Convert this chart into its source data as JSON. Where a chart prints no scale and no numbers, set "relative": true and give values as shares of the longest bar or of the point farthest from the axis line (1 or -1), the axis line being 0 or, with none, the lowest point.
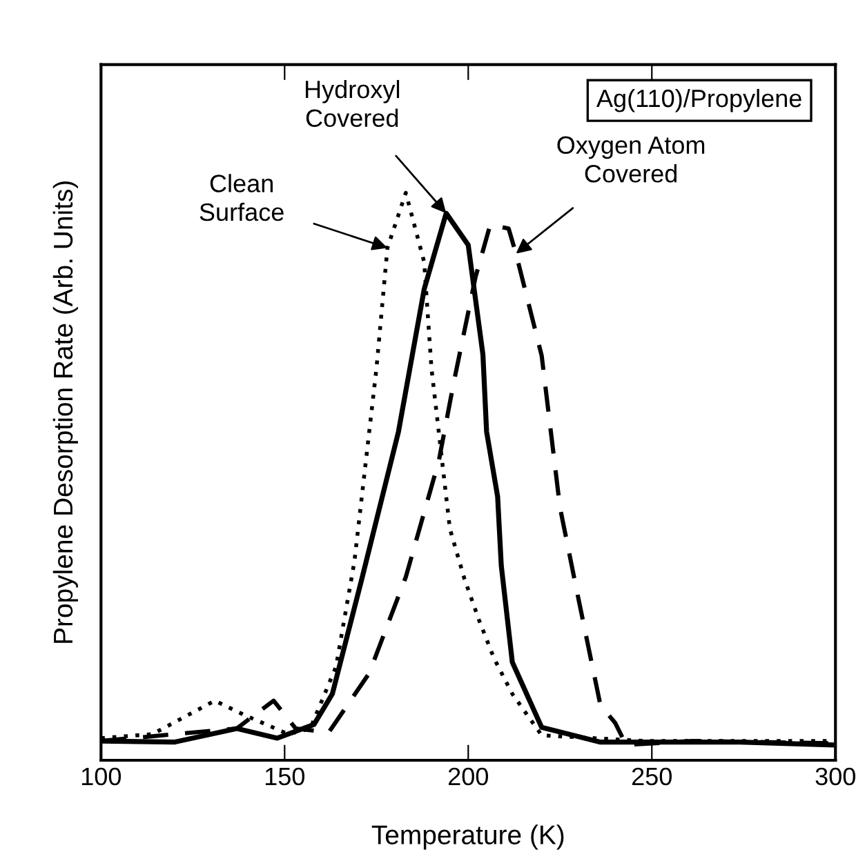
{
  "chart_data": {
    "type": "line",
    "title": "Ag(110)/Propylene",
    "xlabel": "Temperature (K)",
    "ylabel": "Propylene Desorption Rate (Arb. Units)",
    "relative": true,
    "xlim": [
      100,
      300
    ],
    "xticks": [
      100,
      150,
      200,
      250,
      300
    ],
    "grid": false,
    "legend": false,
    "marker": "none",
    "series": [
      {
        "color": "#000000",
        "line_style": "dotted",
        "x": [
          100,
          114,
          131,
          139,
          151,
          157,
          164,
          169,
          175,
          178,
          183,
          188,
          190,
          195,
          199,
          203,
          207,
          212,
          220,
          248,
          298
        ],
        "values": [
          0.039,
          0.046,
          0.105,
          0.08,
          0.046,
          0.056,
          0.165,
          0.35,
          0.69,
          0.903,
          1.0,
          0.878,
          0.69,
          0.408,
          0.319,
          0.246,
          0.18,
          0.117,
          0.044,
          0.034,
          0.034
        ]
      },
      {
        "color": "#000000",
        "line_style": "solid",
        "x": [
          100,
          120,
          137,
          148,
          158,
          163,
          171,
          181,
          188,
          194,
          200,
          204,
          205,
          208,
          209,
          212,
          220,
          236,
          274,
          299
        ],
        "values": [
          0.034,
          0.032,
          0.056,
          0.039,
          0.063,
          0.117,
          0.319,
          0.579,
          0.83,
          0.964,
          0.908,
          0.715,
          0.579,
          0.465,
          0.343,
          0.173,
          0.058,
          0.032,
          0.032,
          0.027
        ]
      },
      {
        "color": "#000000",
        "line_style": "dashed",
        "x": [
          100,
          137,
          140,
          147,
          153,
          162,
          173,
          183,
          192,
          196,
          202,
          206,
          211,
          213,
          220,
          225,
          230,
          236,
          240,
          243,
          261,
          299
        ],
        "values": [
          0.034,
          0.056,
          0.071,
          0.105,
          0.056,
          0.049,
          0.153,
          0.323,
          0.528,
          0.664,
          0.852,
          0.944,
          0.937,
          0.893,
          0.713,
          0.445,
          0.285,
          0.097,
          0.066,
          0.027,
          0.034,
          0.03
        ]
      }
    ],
    "annotations": [
      {
        "text": "Clean\nSurface",
        "x": 178,
        "y": 0.903
      },
      {
        "text": "Hydroxyl\nCovered",
        "x": 194,
        "y": 0.964
      },
      {
        "text": "Oxygen Atom\nCovered",
        "x": 213,
        "y": 0.893
      }
    ]
  }
}
